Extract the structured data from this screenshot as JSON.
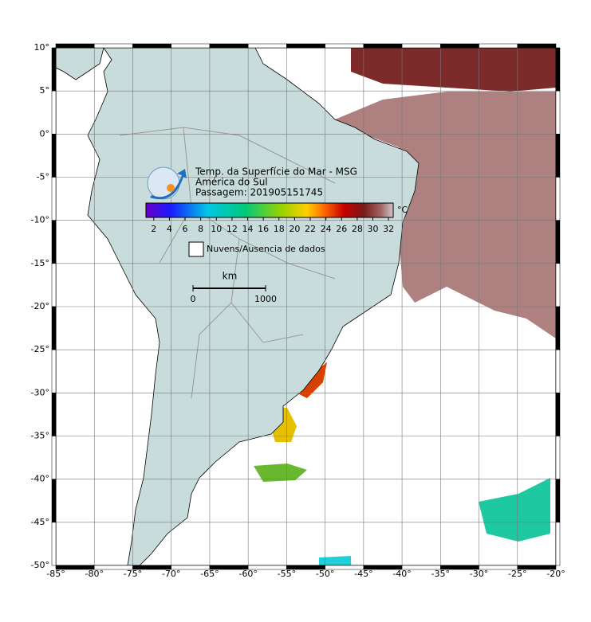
{
  "title": {
    "line1": "Temp. da Superfície do Mar - MSG",
    "line2": "América do Sul",
    "line3": "Passagem: 201905151745"
  },
  "colorbar": {
    "range": [
      1,
      32.6
    ],
    "ticks": [
      2,
      4,
      6,
      8,
      10,
      12,
      14,
      16,
      18,
      20,
      22,
      24,
      26,
      28,
      30,
      32
    ],
    "unit": "°C"
  },
  "legend": {
    "label": "Nuvens/Ausencia de dados"
  },
  "scale": {
    "unit": "km",
    "ticks": [
      0,
      1000
    ]
  },
  "map": {
    "xlim": [
      -85,
      -20
    ],
    "ylim": [
      -50,
      10
    ],
    "xticks": [
      {
        "value": -85,
        "label": "-85°"
      },
      {
        "value": -80,
        "label": "-80°"
      },
      {
        "value": -75,
        "label": "-75°"
      },
      {
        "value": -70,
        "label": "-70°"
      },
      {
        "value": -65,
        "label": "-65°"
      },
      {
        "value": -60,
        "label": "-60°"
      },
      {
        "value": -55,
        "label": "-55°"
      },
      {
        "value": -50,
        "label": "-50°"
      },
      {
        "value": -45,
        "label": "-45°"
      },
      {
        "value": -40,
        "label": "-40°"
      },
      {
        "value": -35,
        "label": "-35°"
      },
      {
        "value": -30,
        "label": "-30°"
      },
      {
        "value": -25,
        "label": "-25°"
      },
      {
        "value": -20,
        "label": "-20°"
      }
    ],
    "yticks": [
      {
        "value": 10,
        "label": "10°"
      },
      {
        "value": 5,
        "label": "5°"
      },
      {
        "value": 0,
        "label": "0°"
      },
      {
        "value": -5,
        "label": "-5°"
      },
      {
        "value": -10,
        "label": "-10°"
      },
      {
        "value": -15,
        "label": "-15°"
      },
      {
        "value": -20,
        "label": "-20°"
      },
      {
        "value": -25,
        "label": "-25°"
      },
      {
        "value": -30,
        "label": "-30°"
      },
      {
        "value": -35,
        "label": "-35°"
      },
      {
        "value": -40,
        "label": "-40°"
      },
      {
        "value": -45,
        "label": "-45°"
      },
      {
        "value": -50,
        "label": "-50°"
      }
    ]
  }
}
